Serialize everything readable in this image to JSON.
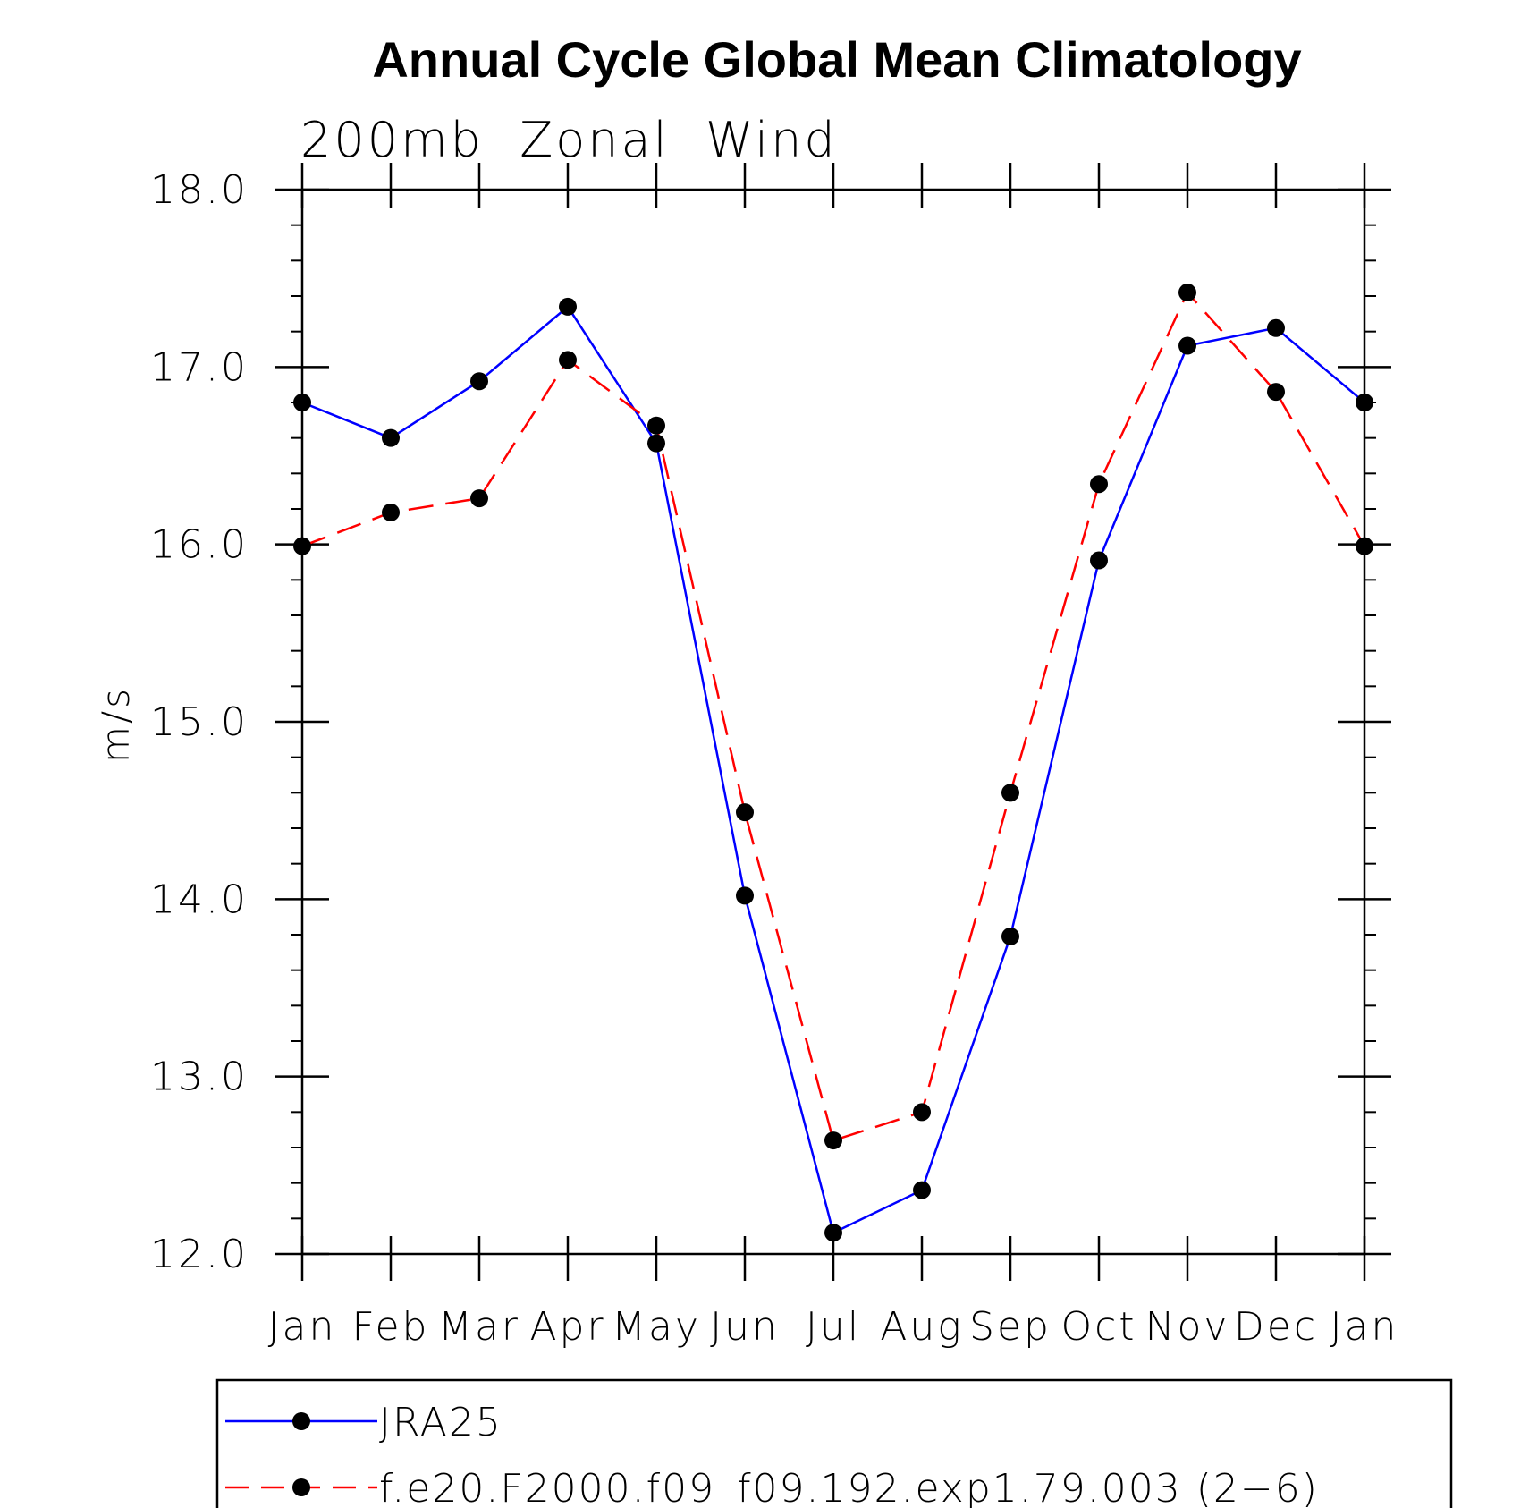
{
  "chart_data": {
    "type": "line",
    "title": "Annual Cycle Global Mean Climatology",
    "subtitle": "200mb  Zonal  Wind",
    "xlabel": "",
    "ylabel": "m/s",
    "ylim": [
      12.0,
      18.0
    ],
    "yticks": [
      12.0,
      13.0,
      14.0,
      15.0,
      16.0,
      17.0,
      18.0
    ],
    "ytick_labels": [
      "12.0",
      "13.0",
      "14.0",
      "15.0",
      "16.0",
      "17.0",
      "18.0"
    ],
    "y_minor_step": 0.2,
    "categories": [
      "Jan",
      "Feb",
      "Mar",
      "Apr",
      "May",
      "Jun",
      "Jul",
      "Aug",
      "Sep",
      "Oct",
      "Nov",
      "Dec",
      "Jan"
    ],
    "grid": false,
    "legend_position": "bottom",
    "series": [
      {
        "name": "JRA25",
        "color": "#0000ff",
        "dash": "solid",
        "marker": "filled-circle",
        "values": [
          16.8,
          16.6,
          16.92,
          17.34,
          16.57,
          14.02,
          12.12,
          12.36,
          13.79,
          15.91,
          17.12,
          17.22,
          16.8
        ]
      },
      {
        "name": "f.e20.F2000.f09_f09.192.exp1.79.003 (2−6)",
        "color": "#ff0000",
        "dash": "dashed",
        "marker": "filled-circle",
        "values": [
          15.99,
          16.18,
          16.26,
          17.04,
          16.67,
          14.49,
          12.64,
          12.8,
          14.6,
          16.34,
          17.42,
          16.86,
          15.99
        ]
      }
    ]
  }
}
